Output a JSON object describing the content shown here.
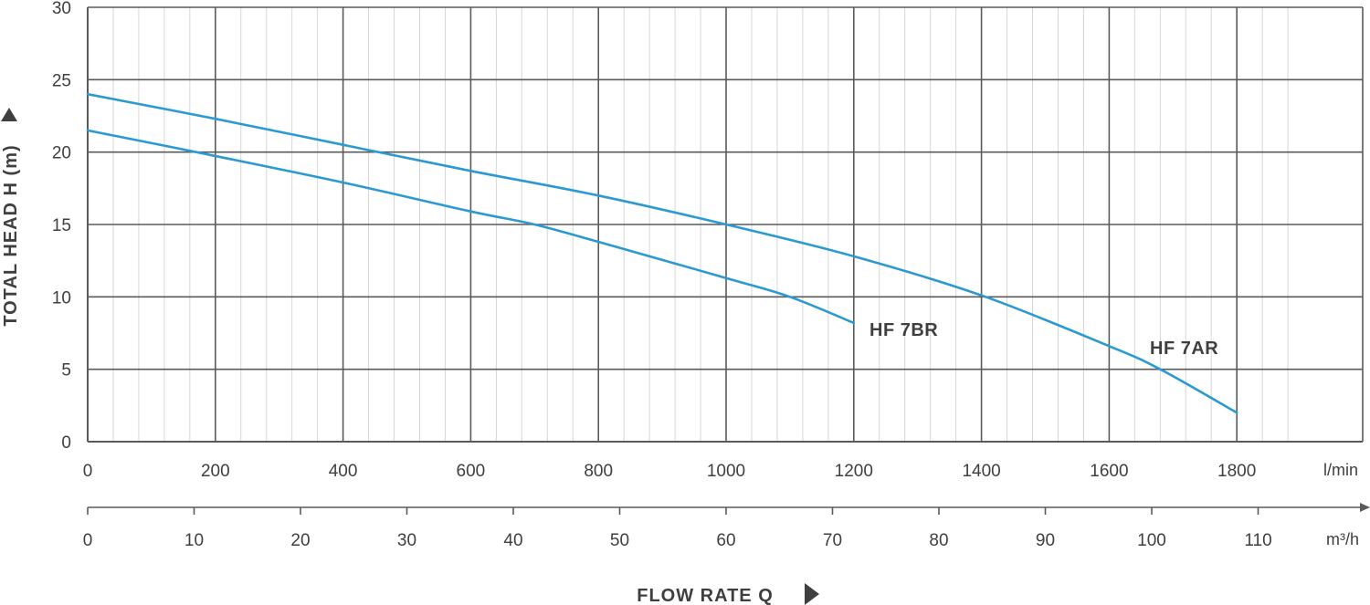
{
  "chart_data": {
    "type": "line",
    "xlabel": "FLOW RATE Q",
    "ylabel": "TOTAL HEAD H (m)",
    "x_unit": "l/min",
    "x2_unit": "m³/h",
    "xlim": [
      0,
      1920
    ],
    "ylim": [
      0,
      30
    ],
    "x_ticks": [
      "0",
      "200",
      "400",
      "600",
      "800",
      "1000",
      "1200",
      "1400",
      "1600",
      "1800"
    ],
    "x2_ticks": [
      "0",
      "10",
      "20",
      "30",
      "40",
      "50",
      "60",
      "70",
      "80",
      "90",
      "100",
      "110"
    ],
    "y_ticks": [
      "0",
      "5",
      "10",
      "15",
      "20",
      "25",
      "30"
    ],
    "grid": true,
    "series_color": "#2b9ad3",
    "series": [
      {
        "name": "HF 7AR",
        "x": [
          0,
          200,
          400,
          600,
          800,
          1000,
          1200,
          1400,
          1600,
          1680,
          1800
        ],
        "y": [
          24.0,
          22.3,
          20.5,
          18.7,
          17.0,
          15.0,
          12.8,
          10.1,
          6.6,
          5.0,
          2.0
        ]
      },
      {
        "name": "HF 7BR",
        "x": [
          0,
          170,
          400,
          600,
          700,
          800,
          1000,
          1100,
          1200
        ],
        "y": [
          21.5,
          20.0,
          17.9,
          15.9,
          15.0,
          13.8,
          11.3,
          10.0,
          8.2
        ]
      }
    ]
  }
}
